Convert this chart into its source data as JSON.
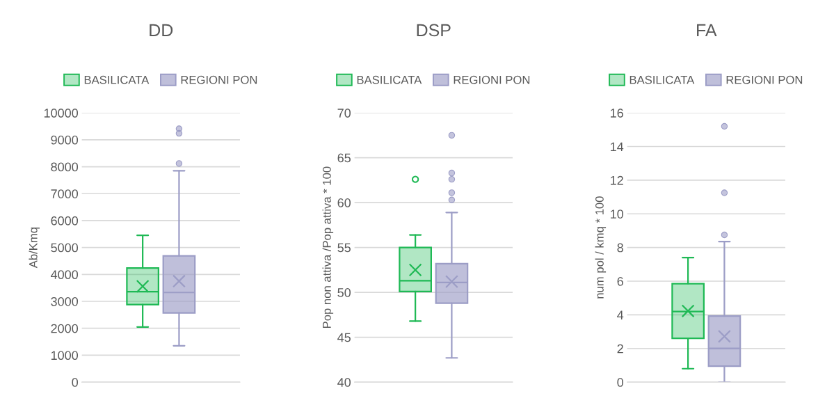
{
  "chart_data": [
    {
      "type": "box",
      "title": "DD",
      "ylabel": "Ab/Kmq",
      "categories": [
        null
      ],
      "ylim": [
        0,
        10000
      ],
      "yticks": [
        0,
        1000,
        2000,
        3000,
        4000,
        5000,
        6000,
        7000,
        8000,
        9000,
        10000
      ],
      "grid": "y",
      "legend": "top",
      "series": [
        {
          "name": "BASILICATA",
          "color": "#1fb955",
          "boxes": [
            {
              "low": 2050,
              "q1": 2880,
              "median": 3360,
              "q3": 4235,
              "high": 5450,
              "mean": 3560
            }
          ]
        },
        {
          "name": "REGIONI PON",
          "color": "#9c9dc6",
          "boxes": [
            {
              "low": 1350,
              "q1": 2570,
              "median": 3330,
              "q3": 4690,
              "high": 7850,
              "mean": 3750,
              "outliers": [
                9410,
                9240,
                8120
              ]
            }
          ]
        }
      ]
    },
    {
      "type": "box",
      "title": "DSP",
      "ylabel": "Pop non attiva /Pop attiva * 100",
      "categories": [
        null
      ],
      "ylim": [
        40,
        70
      ],
      "yticks": [
        40,
        45,
        50,
        55,
        60,
        65,
        70
      ],
      "grid": "y",
      "legend": "top",
      "series": [
        {
          "name": "BASILICATA",
          "color": "#1fb955",
          "boxes": [
            {
              "low": 46.8,
              "q1": 50.1,
              "median": 51.3,
              "q3": 55.0,
              "high": 56.4,
              "mean": 52.5,
              "outliers": [
                62.6
              ]
            }
          ]
        },
        {
          "name": "REGIONI PON",
          "color": "#9c9dc6",
          "boxes": [
            {
              "low": 42.7,
              "q1": 48.8,
              "median": 51.1,
              "q3": 53.2,
              "high": 58.9,
              "mean": 51.2,
              "outliers": [
                67.5,
                63.3,
                62.6,
                61.1,
                60.3
              ]
            }
          ]
        }
      ]
    },
    {
      "type": "box",
      "title": "FA",
      "ylabel": "num pol / kmq * 100",
      "categories": [
        null
      ],
      "ylim": [
        0,
        16
      ],
      "yticks": [
        0,
        2,
        4,
        6,
        8,
        10,
        12,
        14,
        16
      ],
      "grid": "y",
      "legend": "top",
      "series": [
        {
          "name": "BASILICATA",
          "color": "#1fb955",
          "boxes": [
            {
              "low": 0.8,
              "q1": 2.6,
              "median": 4.2,
              "q3": 5.85,
              "high": 7.4,
              "mean": 4.23
            }
          ]
        },
        {
          "name": "REGIONI PON",
          "color": "#9c9dc6",
          "boxes": [
            {
              "low": 0.0,
              "q1": 0.95,
              "median": 2.0,
              "q3": 3.93,
              "high": 8.35,
              "mean": 2.72,
              "outliers": [
                15.2,
                11.25,
                8.75
              ]
            }
          ]
        }
      ]
    }
  ]
}
